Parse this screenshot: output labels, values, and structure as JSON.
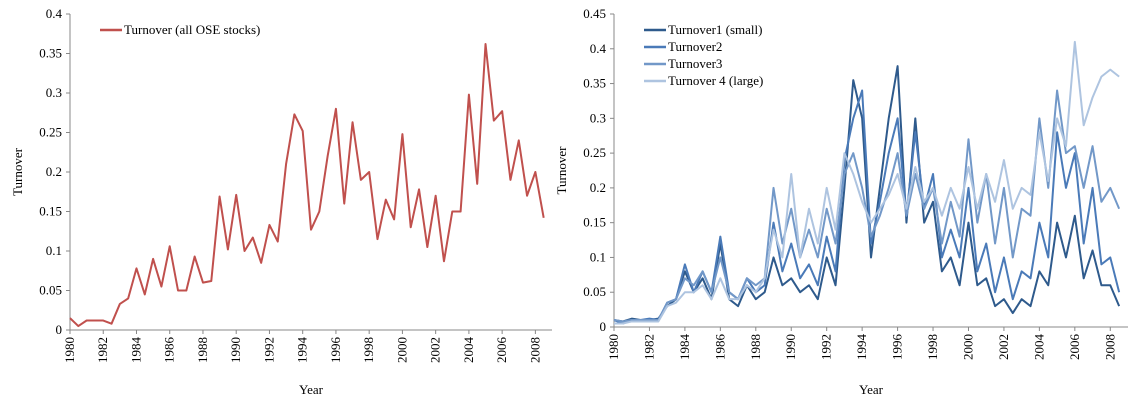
{
  "chart_data": [
    {
      "type": "line",
      "x_label": "Year",
      "y_label": "Turnover",
      "x": [
        1980,
        1980.5,
        1981,
        1981.5,
        1982,
        1982.5,
        1983,
        1983.5,
        1984,
        1984.5,
        1985,
        1985.5,
        1986,
        1986.5,
        1987,
        1987.5,
        1988,
        1988.5,
        1989,
        1989.5,
        1990,
        1990.5,
        1991,
        1991.5,
        1992,
        1992.5,
        1993,
        1993.5,
        1994,
        1994.5,
        1995,
        1995.5,
        1996,
        1996.5,
        1997,
        1997.5,
        1998,
        1998.5,
        1999,
        1999.5,
        2000,
        2000.5,
        2001,
        2001.5,
        2002,
        2002.5,
        2003,
        2003.5,
        2004,
        2004.5,
        2005,
        2005.5,
        2006,
        2006.5,
        2007,
        2007.5,
        2008,
        2008.5
      ],
      "series": [
        {
          "name": "Turnover (all OSE stocks)",
          "color": "#c0504d",
          "values": [
            0.015,
            0.005,
            0.012,
            0.012,
            0.012,
            0.008,
            0.033,
            0.04,
            0.078,
            0.045,
            0.09,
            0.055,
            0.106,
            0.05,
            0.05,
            0.093,
            0.06,
            0.062,
            0.169,
            0.102,
            0.171,
            0.1,
            0.117,
            0.085,
            0.133,
            0.112,
            0.21,
            0.273,
            0.252,
            0.127,
            0.15,
            0.22,
            0.28,
            0.16,
            0.263,
            0.19,
            0.2,
            0.115,
            0.165,
            0.14,
            0.248,
            0.13,
            0.178,
            0.105,
            0.17,
            0.087,
            0.15,
            0.15,
            0.298,
            0.185,
            0.362,
            0.265,
            0.277,
            0.19,
            0.24,
            0.17,
            0.2,
            0.142
          ]
        }
      ],
      "xlim": [
        1980,
        2009
      ],
      "xticks": [
        1980,
        1982,
        1984,
        1986,
        1988,
        1990,
        1992,
        1994,
        1996,
        1998,
        2000,
        2002,
        2004,
        2006,
        2008
      ],
      "ylim": [
        0,
        0.4
      ],
      "yticks": [
        0,
        0.05,
        0.1,
        0.15,
        0.2,
        0.25,
        0.3,
        0.35,
        0.4
      ],
      "legend": "top-left"
    },
    {
      "type": "line",
      "x_label": "Year",
      "y_label": "Turnover",
      "x": [
        1980,
        1980.5,
        1981,
        1981.5,
        1982,
        1982.5,
        1983,
        1983.5,
        1984,
        1984.5,
        1985,
        1985.5,
        1986,
        1986.5,
        1987,
        1987.5,
        1988,
        1988.5,
        1989,
        1989.5,
        1990,
        1990.5,
        1991,
        1991.5,
        1992,
        1992.5,
        1993,
        1993.5,
        1994,
        1994.5,
        1995,
        1995.5,
        1996,
        1996.5,
        1997,
        1997.5,
        1998,
        1998.5,
        1999,
        1999.5,
        2000,
        2000.5,
        2001,
        2001.5,
        2002,
        2002.5,
        2003,
        2003.5,
        2004,
        2004.5,
        2005,
        2005.5,
        2006,
        2006.5,
        2007,
        2007.5,
        2008,
        2008.5
      ],
      "series": [
        {
          "name": "Turnover1 (small)",
          "color": "#2e5a8c",
          "values": [
            0.01,
            0.008,
            0.012,
            0.01,
            0.01,
            0.012,
            0.03,
            0.04,
            0.08,
            0.05,
            0.07,
            0.04,
            0.12,
            0.04,
            0.03,
            0.06,
            0.04,
            0.05,
            0.1,
            0.06,
            0.07,
            0.05,
            0.06,
            0.04,
            0.1,
            0.06,
            0.2,
            0.355,
            0.3,
            0.1,
            0.2,
            0.3,
            0.375,
            0.15,
            0.3,
            0.15,
            0.18,
            0.08,
            0.1,
            0.06,
            0.15,
            0.06,
            0.07,
            0.03,
            0.04,
            0.02,
            0.04,
            0.03,
            0.08,
            0.06,
            0.15,
            0.1,
            0.16,
            0.07,
            0.11,
            0.06,
            0.06,
            0.03
          ]
        },
        {
          "name": "Turnover2",
          "color": "#4a7ab8",
          "values": [
            0.01,
            0.005,
            0.01,
            0.01,
            0.012,
            0.01,
            0.035,
            0.04,
            0.09,
            0.05,
            0.08,
            0.05,
            0.13,
            0.05,
            0.04,
            0.07,
            0.05,
            0.06,
            0.15,
            0.08,
            0.12,
            0.07,
            0.09,
            0.06,
            0.13,
            0.08,
            0.24,
            0.3,
            0.34,
            0.12,
            0.18,
            0.25,
            0.3,
            0.16,
            0.28,
            0.17,
            0.22,
            0.1,
            0.14,
            0.1,
            0.2,
            0.08,
            0.12,
            0.05,
            0.1,
            0.04,
            0.08,
            0.07,
            0.15,
            0.1,
            0.28,
            0.2,
            0.25,
            0.12,
            0.2,
            0.09,
            0.1,
            0.05
          ]
        },
        {
          "name": "Turnover3",
          "color": "#7298c8",
          "values": [
            0.01,
            0.008,
            0.01,
            0.01,
            0.01,
            0.01,
            0.035,
            0.04,
            0.07,
            0.06,
            0.08,
            0.05,
            0.1,
            0.05,
            0.04,
            0.07,
            0.06,
            0.07,
            0.2,
            0.12,
            0.17,
            0.1,
            0.14,
            0.1,
            0.17,
            0.12,
            0.22,
            0.25,
            0.2,
            0.13,
            0.16,
            0.2,
            0.25,
            0.16,
            0.22,
            0.17,
            0.2,
            0.12,
            0.18,
            0.13,
            0.27,
            0.15,
            0.22,
            0.12,
            0.2,
            0.1,
            0.17,
            0.16,
            0.3,
            0.2,
            0.34,
            0.25,
            0.26,
            0.2,
            0.26,
            0.18,
            0.2,
            0.17
          ]
        },
        {
          "name": "Turnover 4 (large)",
          "color": "#aec4e0",
          "values": [
            0.005,
            0.005,
            0.008,
            0.008,
            0.008,
            0.008,
            0.03,
            0.035,
            0.05,
            0.05,
            0.06,
            0.04,
            0.07,
            0.04,
            0.04,
            0.06,
            0.05,
            0.07,
            0.14,
            0.1,
            0.22,
            0.1,
            0.17,
            0.12,
            0.2,
            0.14,
            0.25,
            0.22,
            0.18,
            0.15,
            0.17,
            0.19,
            0.22,
            0.17,
            0.23,
            0.18,
            0.2,
            0.16,
            0.2,
            0.17,
            0.23,
            0.17,
            0.22,
            0.18,
            0.24,
            0.17,
            0.2,
            0.19,
            0.28,
            0.21,
            0.3,
            0.26,
            0.41,
            0.29,
            0.33,
            0.36,
            0.37,
            0.36
          ]
        }
      ],
      "xlim": [
        1980,
        2009
      ],
      "xticks": [
        1980,
        1982,
        1984,
        1986,
        1988,
        1990,
        1992,
        1994,
        1996,
        1998,
        2000,
        2002,
        2004,
        2006,
        2008
      ],
      "ylim": [
        0,
        0.45
      ],
      "yticks": [
        0,
        0.05,
        0.1,
        0.15,
        0.2,
        0.25,
        0.3,
        0.35,
        0.4,
        0.45
      ],
      "legend": "top-left"
    }
  ]
}
